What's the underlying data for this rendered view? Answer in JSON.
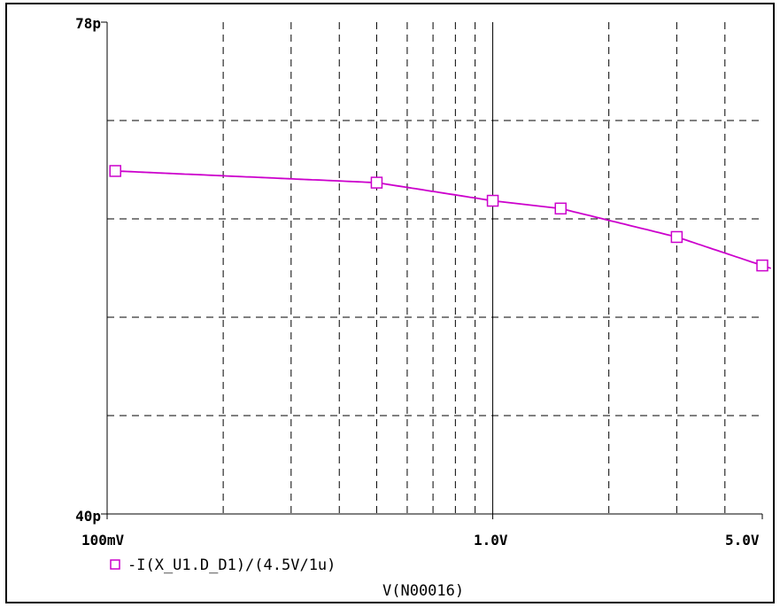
{
  "chart_data": {
    "type": "line",
    "title": "",
    "xlabel": "V(N00016)",
    "ylabel": "",
    "x_scale": "log",
    "y_scale": "linear",
    "xlim": [
      0.1,
      5.0
    ],
    "ylim": [
      40,
      78
    ],
    "x_unit": "V",
    "y_unit": "p",
    "grid": true,
    "legend_placement": "bottom-left",
    "x_tick_labels": [
      "100mV",
      "1.0V",
      "5.0V"
    ],
    "y_tick_labels": [
      "78p",
      "40p"
    ],
    "series": [
      {
        "name": "-I(X_U1.D_D1)/(4.5V/1u)",
        "color": "#cc00cc",
        "marker": "square",
        "x": [
          0.105,
          0.5,
          1.0,
          1.5,
          3.0,
          5.0
        ],
        "y": [
          66.5,
          65.6,
          64.2,
          63.6,
          61.4,
          59.2
        ]
      }
    ]
  },
  "colors": {
    "axis": "#000000",
    "grid": "#000000",
    "series": "#cc00cc"
  }
}
